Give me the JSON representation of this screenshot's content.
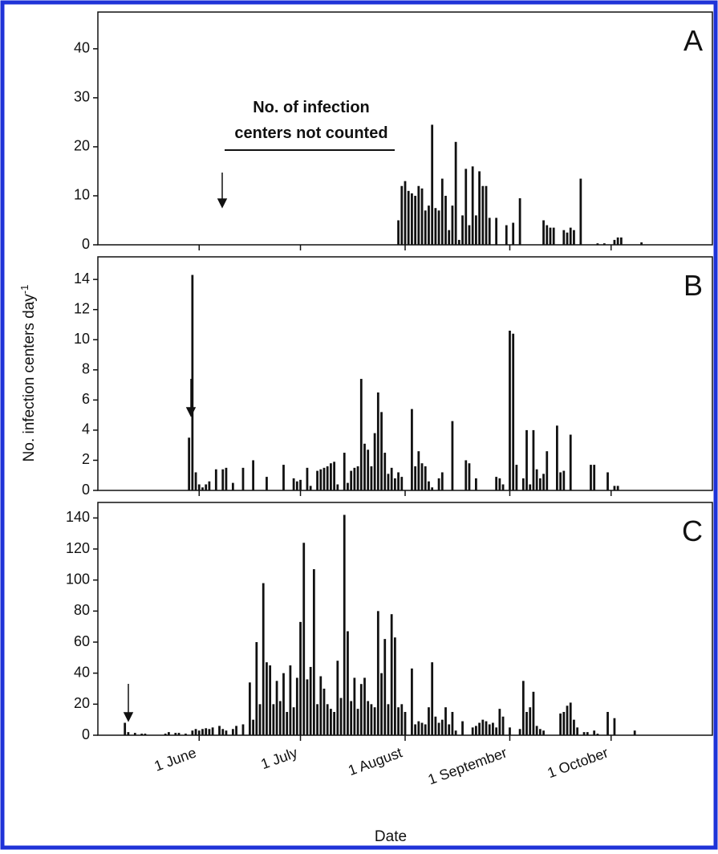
{
  "chart_data": [
    {
      "type": "bar",
      "panel": "A",
      "color": "#111111",
      "annotation": [
        "No. of infection",
        "centers not counted"
      ],
      "ylim": [
        0,
        47.5
      ],
      "yticks": [
        0,
        10,
        20,
        30,
        40
      ],
      "x": [
        211,
        212,
        213,
        214,
        215,
        216,
        217,
        218,
        219,
        220,
        221,
        222,
        223,
        224,
        225,
        226,
        227,
        228,
        229,
        230,
        231,
        232,
        233,
        234,
        235,
        236,
        237,
        238,
        240,
        243,
        245,
        247,
        254,
        255,
        256,
        257,
        260,
        261,
        262,
        263,
        265,
        270,
        272,
        275,
        276,
        277,
        283
      ],
      "values": [
        5,
        12,
        13,
        11,
        10.5,
        10,
        12,
        11.5,
        7,
        8,
        24.5,
        7.5,
        7,
        13.5,
        10,
        3,
        8,
        21,
        1,
        6,
        15.5,
        4,
        16,
        6,
        15,
        12,
        12,
        5.5,
        5.5,
        4,
        4.5,
        9.5,
        5,
        4,
        3.5,
        3.5,
        3,
        2.5,
        3.5,
        3,
        13.5,
        0.3,
        0.3,
        1,
        1.5,
        1.5,
        0.5
      ]
    },
    {
      "type": "bar",
      "panel": "B",
      "color": "#111111",
      "ylabel": "No. infection centers day",
      "ylabel_superscript": "-1",
      "ylim": [
        0,
        15.5
      ],
      "yticks": [
        0,
        2,
        4,
        6,
        8,
        10,
        12,
        14
      ],
      "x": [
        149,
        150,
        151,
        152,
        153,
        154,
        155,
        157,
        159,
        160,
        162,
        165,
        168,
        172,
        177,
        180,
        181,
        182,
        184,
        185,
        187,
        188,
        189,
        190,
        191,
        192,
        193,
        195,
        196,
        197,
        198,
        199,
        200,
        201,
        202,
        203,
        204,
        205,
        206,
        207,
        208,
        209,
        210,
        211,
        212,
        215,
        216,
        217,
        218,
        219,
        220,
        221,
        223,
        224,
        227,
        231,
        232,
        234,
        240,
        241,
        242,
        244,
        245,
        246,
        248,
        249,
        250,
        251,
        252,
        253,
        254,
        255,
        258,
        259,
        260,
        262,
        268,
        269,
        273,
        275,
        276
      ],
      "values": [
        3.5,
        14.3,
        1.2,
        0.4,
        0.2,
        0.4,
        0.6,
        1.4,
        1.4,
        1.5,
        0.5,
        1.5,
        2,
        0.9,
        1.7,
        0.8,
        0.6,
        0.7,
        1.5,
        0.3,
        1.3,
        1.4,
        1.5,
        1.6,
        1.8,
        1.9,
        0.4,
        2.5,
        0.5,
        1.3,
        1.5,
        1.6,
        7.4,
        3.1,
        2.7,
        1.6,
        3.8,
        6.5,
        5.2,
        2.5,
        1.1,
        1.5,
        0.8,
        1.2,
        0.9,
        5.4,
        1.6,
        2.6,
        1.8,
        1.6,
        0.6,
        0.2,
        0.8,
        1.2,
        4.6,
        2,
        1.8,
        0.8,
        0.9,
        0.8,
        0.4,
        10.6,
        10.4,
        1.7,
        0.8,
        4,
        0.4,
        4,
        1.4,
        0.8,
        1.1,
        2.6,
        4.3,
        1.2,
        1.3,
        3.7,
        1.7,
        1.7,
        1.2,
        0.3,
        0.3
      ]
    },
    {
      "type": "bar",
      "panel": "C",
      "color": "#111111",
      "xlabel": "Date",
      "xlim": [
        122,
        304
      ],
      "xticks": [
        {
          "value": 152,
          "label": "1 June"
        },
        {
          "value": 182,
          "label": "1 July"
        },
        {
          "value": 213,
          "label": "1 August"
        },
        {
          "value": 244,
          "label": "1 September"
        },
        {
          "value": 274,
          "label": "1 October"
        }
      ],
      "ylim": [
        0,
        150
      ],
      "yticks": [
        0,
        20,
        40,
        60,
        80,
        100,
        120,
        140
      ],
      "x": [
        130,
        131,
        133,
        135,
        136,
        142,
        143,
        145,
        146,
        148,
        150,
        151,
        152,
        153,
        154,
        155,
        156,
        158,
        159,
        160,
        162,
        163,
        165,
        167,
        168,
        169,
        170,
        171,
        172,
        173,
        174,
        175,
        176,
        177,
        178,
        179,
        180,
        181,
        182,
        183,
        184,
        185,
        186,
        187,
        188,
        189,
        190,
        191,
        192,
        193,
        194,
        195,
        196,
        197,
        198,
        199,
        200,
        201,
        202,
        203,
        204,
        205,
        206,
        207,
        208,
        209,
        210,
        211,
        212,
        213,
        215,
        216,
        217,
        218,
        219,
        220,
        221,
        222,
        223,
        224,
        225,
        226,
        227,
        228,
        230,
        233,
        234,
        235,
        236,
        237,
        238,
        239,
        240,
        241,
        242,
        244,
        247,
        248,
        249,
        250,
        251,
        252,
        253,
        254,
        259,
        260,
        261,
        262,
        263,
        264,
        266,
        267,
        269,
        270,
        273,
        275,
        281
      ],
      "values": [
        8,
        2,
        1.5,
        1,
        1,
        1,
        2,
        1.5,
        1.5,
        1,
        3,
        4,
        3,
        4,
        4.5,
        4,
        5,
        6,
        4,
        3,
        4,
        6,
        7,
        34,
        10,
        60,
        20,
        98,
        47,
        45,
        20,
        35,
        22,
        40,
        15,
        45,
        18,
        37,
        73,
        124,
        36,
        44,
        107,
        20,
        38,
        30,
        20,
        17,
        15,
        48,
        24,
        142,
        67,
        22,
        37,
        17,
        33,
        37,
        22,
        20,
        18,
        80,
        40,
        62,
        20,
        78,
        63,
        18,
        20,
        15,
        43,
        7,
        9,
        8,
        7,
        18,
        47,
        12,
        8,
        10,
        18,
        7,
        15,
        3,
        9,
        5,
        6,
        8,
        10,
        9,
        7,
        8,
        5,
        17,
        12,
        5,
        4,
        35,
        15,
        18,
        28,
        6,
        4,
        3,
        14,
        15,
        19,
        21,
        10,
        5,
        2,
        2,
        3,
        1,
        15,
        11,
        3
      ]
    }
  ]
}
